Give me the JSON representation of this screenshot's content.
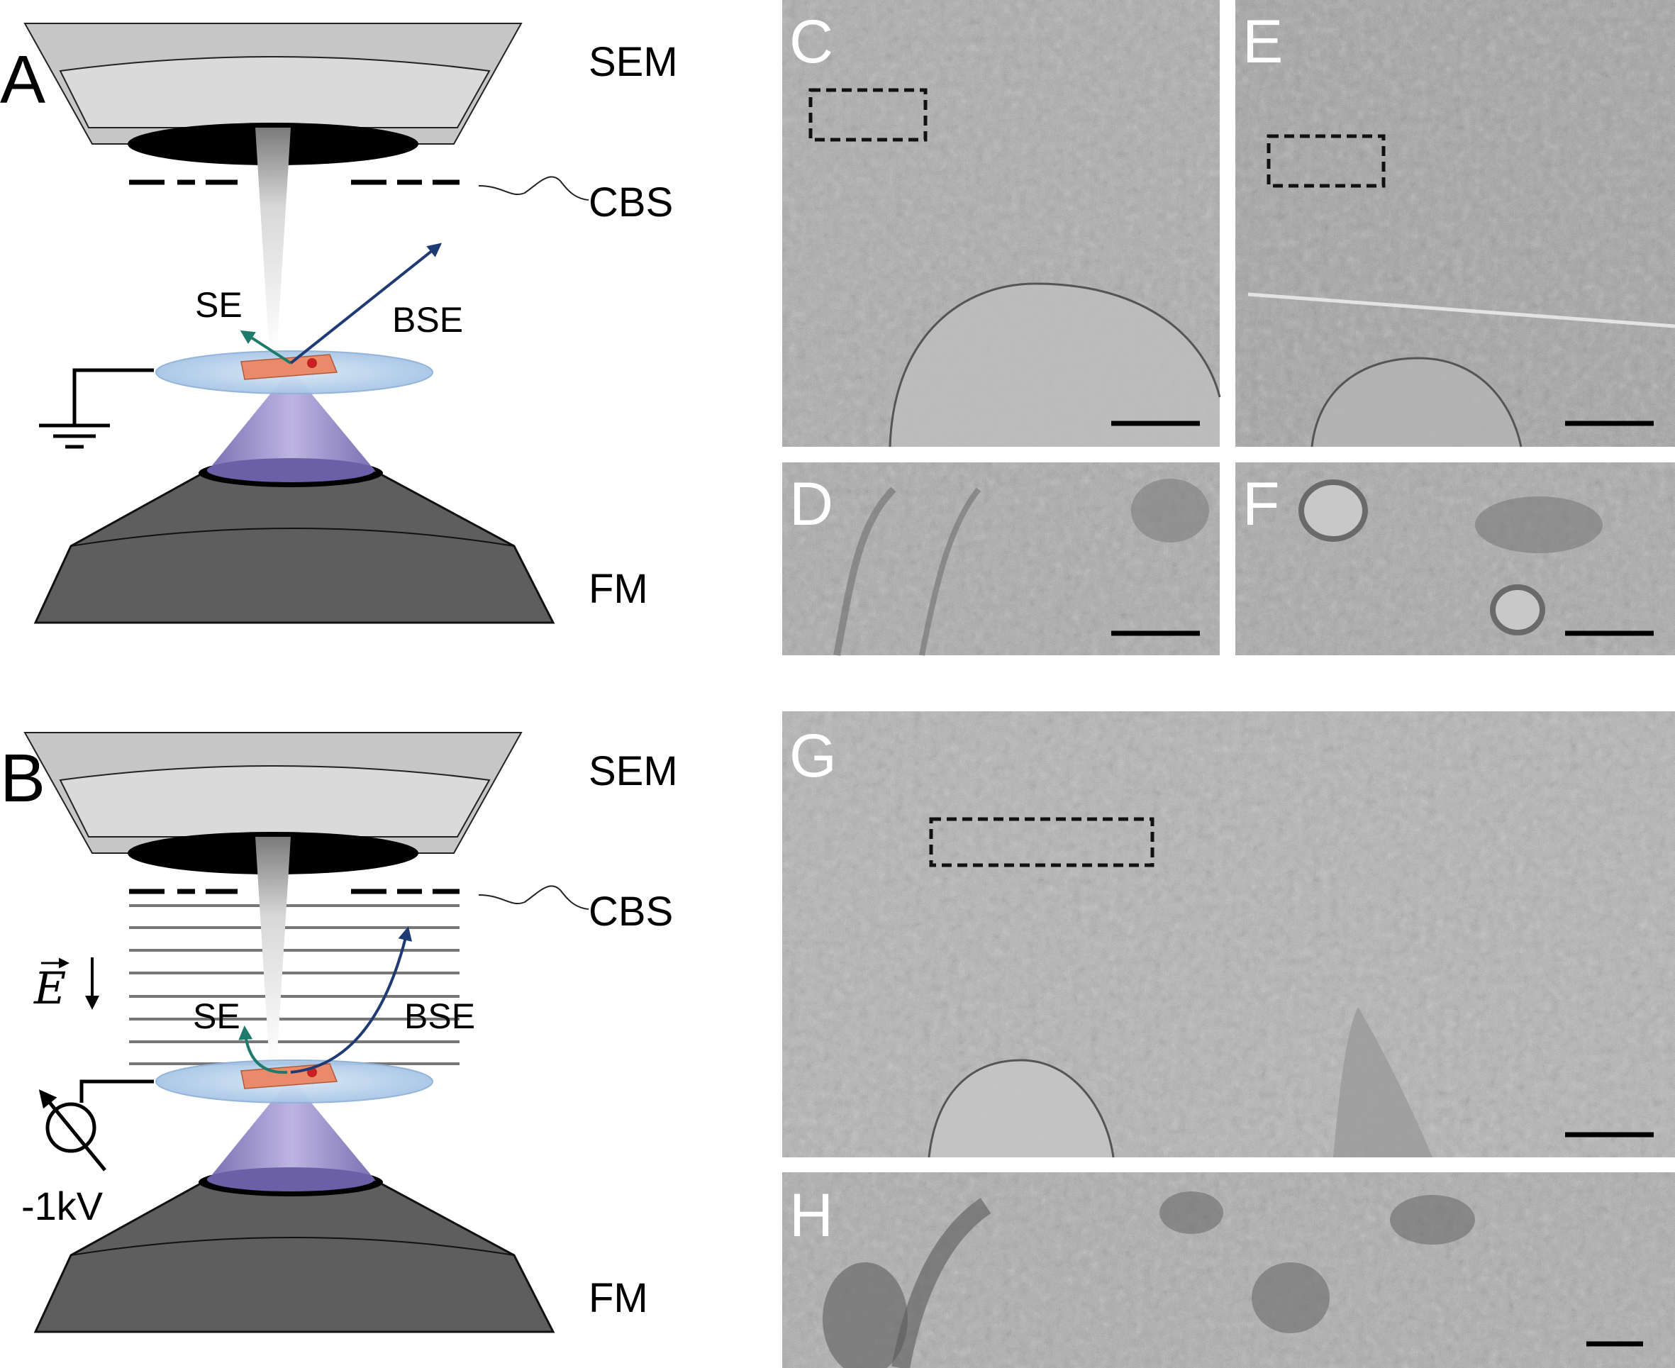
{
  "panels": {
    "A": {
      "letter": "A",
      "sem": "SEM",
      "cbs": "CBS",
      "se": "SE",
      "bse": "BSE",
      "fm": "FM"
    },
    "B": {
      "letter": "B",
      "sem": "SEM",
      "cbs": "CBS",
      "field": "E",
      "se": "SE",
      "bse": "BSE",
      "voltage": "-1kV",
      "fm": "FM"
    },
    "micrographs": [
      "C",
      "D",
      "E",
      "F",
      "G",
      "H"
    ]
  },
  "colors": {
    "lens_light": "#c8c8c8",
    "lens_dark": "#5e5e5e",
    "aperture": "#000000",
    "sample_stage": "#b9d2ec",
    "sample": "#e98a6a",
    "fm_cone": "#8a7cc4",
    "se_arrow": "#1e7a6a",
    "bse_arrow": "#1f3b73",
    "em_background": "#a9a9a9"
  },
  "icons": {
    "ground": "ground-icon",
    "voltage_source": "voltage-source-icon"
  }
}
